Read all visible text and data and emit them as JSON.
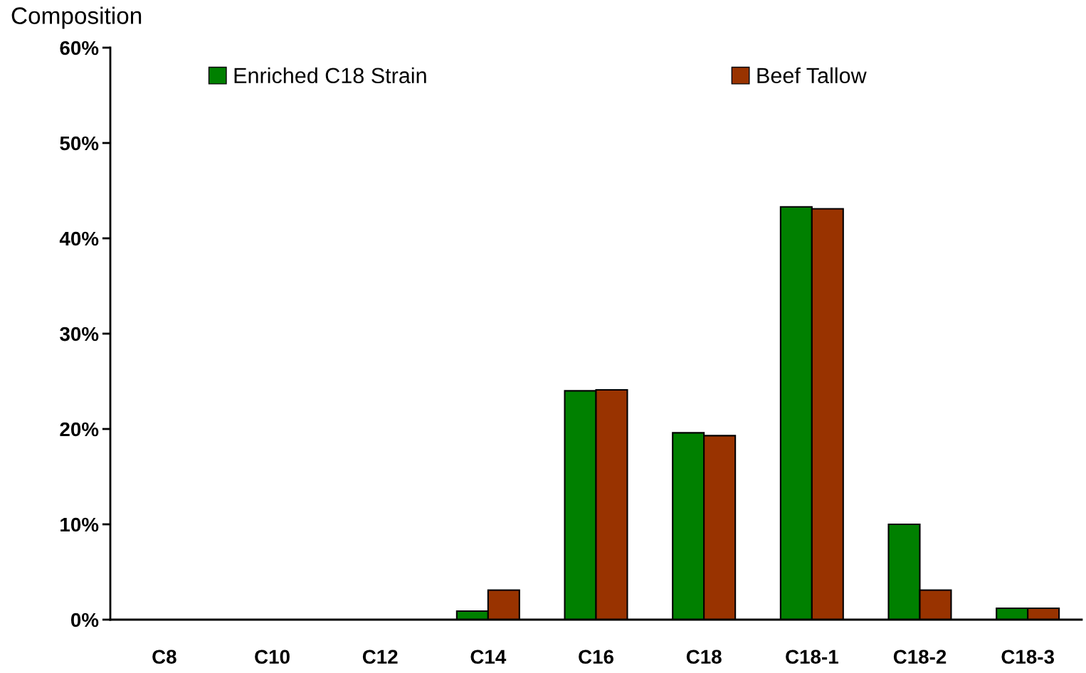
{
  "chart_data": {
    "type": "bar",
    "ylabel": "Composition",
    "categories": [
      "C8",
      "C10",
      "C12",
      "C14",
      "C16",
      "C18",
      "C18-1",
      "C18-2",
      "C18-3"
    ],
    "series": [
      {
        "name": "Enriched C18 Strain",
        "color": "#008000",
        "values": [
          0,
          0,
          0,
          0.9,
          24.0,
          19.6,
          43.3,
          10.0,
          1.2
        ]
      },
      {
        "name": "Beef Tallow",
        "color": "#993300",
        "values": [
          0,
          0,
          0,
          3.1,
          24.1,
          19.3,
          43.1,
          3.1,
          1.2
        ]
      }
    ],
    "ylim": [
      0,
      60
    ],
    "yticks": [
      {
        "value": 0,
        "label": "0%"
      },
      {
        "value": 10,
        "label": "10%"
      },
      {
        "value": 20,
        "label": "20%"
      },
      {
        "value": 30,
        "label": "30%"
      },
      {
        "value": 40,
        "label": "40%"
      },
      {
        "value": 50,
        "label": "50%"
      },
      {
        "value": 60,
        "label": "60%"
      }
    ],
    "grid": false,
    "legend": "top"
  }
}
